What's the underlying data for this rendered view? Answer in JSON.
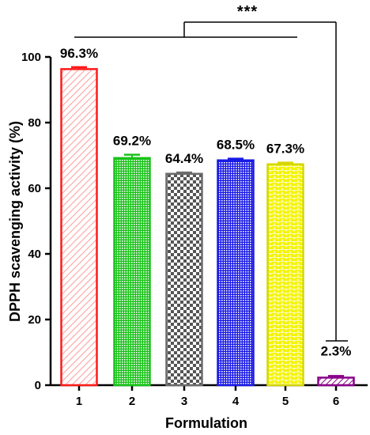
{
  "chart_data": {
    "type": "bar",
    "categories": [
      "1",
      "2",
      "3",
      "4",
      "5",
      "6"
    ],
    "values": [
      96.3,
      69.2,
      64.4,
      68.5,
      67.3,
      2.3
    ],
    "errors": [
      0.6,
      1.0,
      0.4,
      0.5,
      0.5,
      0.5
    ],
    "data_labels": [
      "96.3%",
      "69.2%",
      "64.4%",
      "68.5%",
      "67.3%",
      "2.3%"
    ],
    "bar_colors": [
      "#ff1a1a",
      "#17c217",
      "#6b6b6b",
      "#1a1ae6",
      "#d6d600",
      "#8a008a"
    ],
    "bar_patterns": [
      "diagonal-hatch",
      "fine-grid",
      "checkerboard",
      "fine-grid",
      "brick",
      "diagonal-hatch"
    ],
    "xlabel": "Formulation",
    "ylabel": "DPPH scavenging activity (%)",
    "ylim": [
      0,
      100
    ],
    "yticks": [
      "0",
      "20",
      "40",
      "60",
      "80",
      "100"
    ],
    "significance": "***",
    "grid": false,
    "legend": "none"
  }
}
